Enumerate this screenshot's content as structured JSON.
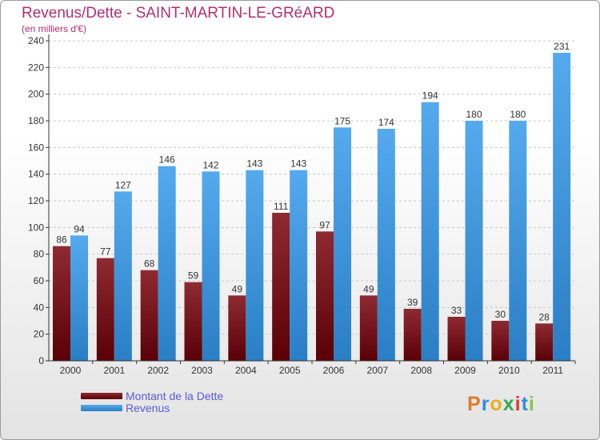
{
  "header": {
    "title": "Revenus/Dette - SAINT-MARTIN-LE-GRéARD",
    "subtitle": "(en milliers d'€)"
  },
  "brand": {
    "text": "Proxiti",
    "colors": [
      "#e07a2a",
      "#2e8fd8",
      "#e8b01f",
      "#3aa850",
      "#d93a2b",
      "#2e8fd8",
      "#8bc34a"
    ]
  },
  "chart_data": {
    "type": "bar",
    "categories": [
      "2000",
      "2001",
      "2002",
      "2003",
      "2004",
      "2005",
      "2006",
      "2007",
      "2008",
      "2009",
      "2010",
      "2011"
    ],
    "series": [
      {
        "name": "Montant de la Dette",
        "color": "#7a0f16",
        "values": [
          86,
          77,
          68,
          59,
          49,
          111,
          97,
          49,
          39,
          33,
          30,
          28
        ]
      },
      {
        "name": "Revenus",
        "color": "#3f98e0",
        "values": [
          94,
          127,
          146,
          142,
          143,
          143,
          175,
          174,
          194,
          180,
          180,
          231
        ]
      }
    ],
    "yticks": [
      0,
      20,
      40,
      60,
      80,
      100,
      120,
      140,
      160,
      180,
      200,
      220,
      240
    ],
    "ylim": [
      0,
      240
    ],
    "grid": "horizontal dashed",
    "legend_position": "bottom-left"
  }
}
